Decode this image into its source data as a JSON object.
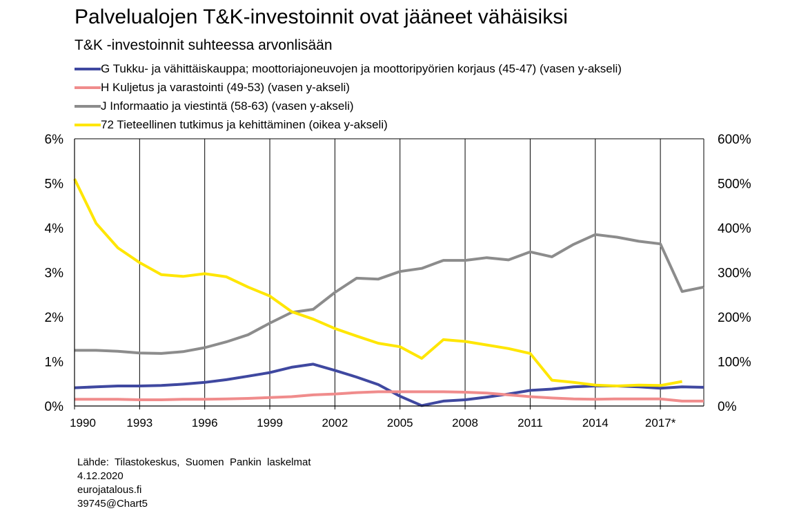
{
  "header": {
    "title": "Palvelualojen T&K-investoinnit ovat jääneet vähäisiksi",
    "subtitle": "T&K -investoinnit suhteessa arvonlisään"
  },
  "footer": {
    "source": "Lähde:  Tilastokeskus,  Suomen  Pankin  laskelmat",
    "date": "4.12.2020",
    "site": "eurojatalous.fi",
    "chart_id": "39745@Chart5"
  },
  "chart_data": {
    "type": "line",
    "title": "Palvelualojen T&K-investoinnit ovat jääneet vähäisiksi",
    "subtitle": "T&K -investoinnit suhteessa arvonlisään",
    "x": [
      1990,
      1991,
      1992,
      1993,
      1994,
      1995,
      1996,
      1997,
      1998,
      1999,
      2000,
      2001,
      2002,
      2003,
      2004,
      2005,
      2006,
      2007,
      2008,
      2009,
      2010,
      2011,
      2012,
      2013,
      2014,
      2015,
      2016,
      2017,
      2018,
      2019
    ],
    "x_ticks": [
      1990,
      1993,
      1996,
      1999,
      2002,
      2005,
      2008,
      2011,
      2014,
      2017
    ],
    "x_tick_labels": [
      "1990",
      "1993",
      "1996",
      "1999",
      "2002",
      "2005",
      "2008",
      "2011",
      "2014",
      "2017*"
    ],
    "xlim": [
      1990,
      2019
    ],
    "ylim_left": [
      0,
      6
    ],
    "ylim_right": [
      0,
      600
    ],
    "y_ticks_left": [
      "0%",
      "1%",
      "2%",
      "3%",
      "4%",
      "5%",
      "6%"
    ],
    "y_ticks_right": [
      "0%",
      "100%",
      "200%",
      "300%",
      "400%",
      "500%",
      "600%"
    ],
    "grid": "vertical",
    "legend_position": "top-left",
    "series": [
      {
        "name": "G Tukku- ja vähittäiskauppa; moottoriajoneuvojen ja moottoripyörien korjaus (45-47) (vasen y-akseli)",
        "axis": "left",
        "color": "#3f48a0",
        "values": [
          0.41,
          0.43,
          0.45,
          0.45,
          0.46,
          0.49,
          0.53,
          0.59,
          0.67,
          0.75,
          0.87,
          0.94,
          0.8,
          0.65,
          0.48,
          0.22,
          0.01,
          0.11,
          0.14,
          0.2,
          0.27,
          0.35,
          0.38,
          0.43,
          0.45,
          0.45,
          0.43,
          0.4,
          0.43,
          0.42
        ]
      },
      {
        "name": "H Kuljetus ja varastointi (49-53) (vasen y-akseli)",
        "axis": "left",
        "color": "#f08c8c",
        "values": [
          0.15,
          0.15,
          0.15,
          0.14,
          0.14,
          0.15,
          0.15,
          0.16,
          0.17,
          0.19,
          0.21,
          0.25,
          0.27,
          0.3,
          0.32,
          0.32,
          0.32,
          0.32,
          0.31,
          0.29,
          0.25,
          0.21,
          0.18,
          0.16,
          0.15,
          0.16,
          0.16,
          0.16,
          0.11,
          0.11
        ]
      },
      {
        "name": "J Informaatio ja viestintä (58-63) (vasen y-akseli)",
        "axis": "left",
        "color": "#8c8c8c",
        "values": [
          1.25,
          1.25,
          1.23,
          1.19,
          1.18,
          1.22,
          1.31,
          1.44,
          1.6,
          1.86,
          2.1,
          2.17,
          2.55,
          2.87,
          2.85,
          3.02,
          3.09,
          3.27,
          3.27,
          3.33,
          3.28,
          3.46,
          3.35,
          3.63,
          3.85,
          3.79,
          3.7,
          3.64,
          2.57,
          2.67
        ]
      },
      {
        "name": "72 Tieteellinen tutkimus ja kehittäminen (oikea y-akseli)",
        "axis": "right",
        "color": "#ffe600",
        "values": [
          510,
          410,
          355,
          322,
          295,
          291,
          297,
          290,
          267,
          247,
          212,
          195,
          174,
          157,
          141,
          133,
          107,
          149,
          145,
          137,
          129,
          118,
          58,
          53,
          47,
          45,
          47,
          46,
          55,
          null
        ]
      }
    ]
  }
}
